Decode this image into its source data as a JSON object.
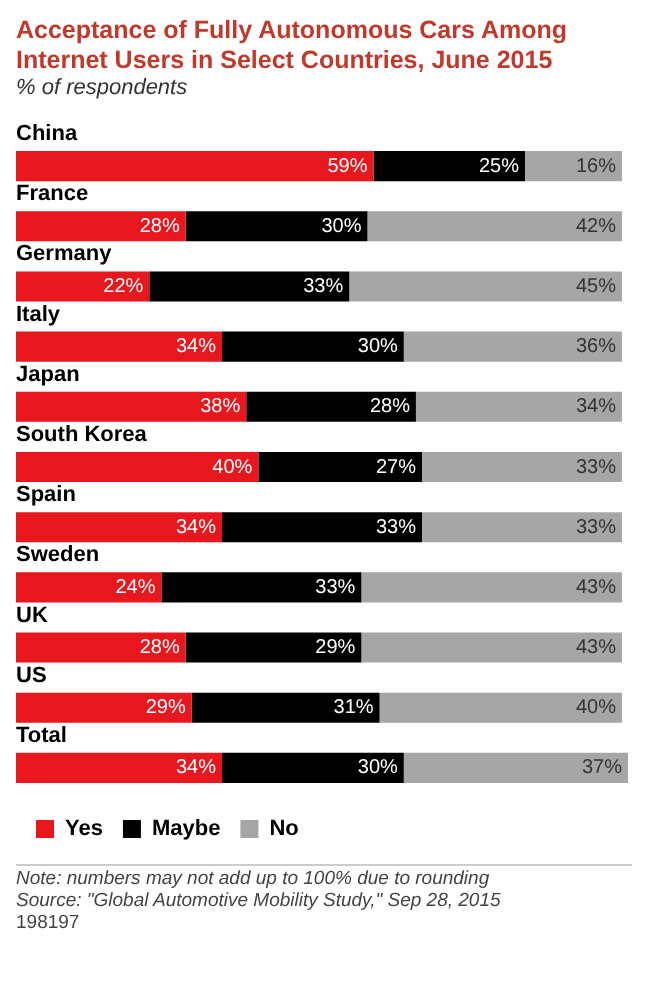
{
  "chart_data": {
    "type": "bar",
    "orientation": "horizontal",
    "stacked": true,
    "title": "Acceptance of Fully Autonomous Cars Among Internet Users in Select Countries, June 2015",
    "subtitle": "% of respondents",
    "categories": [
      "China",
      "France",
      "Germany",
      "Italy",
      "Japan",
      "South Korea",
      "Spain",
      "Sweden",
      "UK",
      "US",
      "Total"
    ],
    "series": [
      {
        "name": "Yes",
        "color": "#e8161d",
        "values": [
          59,
          28,
          22,
          34,
          38,
          40,
          34,
          24,
          28,
          29,
          34
        ],
        "value_labels": [
          "59%",
          "28%",
          "22%",
          "34%",
          "38%",
          "40%",
          "34%",
          "24%",
          "28%",
          "29%",
          "34%"
        ]
      },
      {
        "name": "Maybe",
        "color": "#000000",
        "values": [
          25,
          30,
          33,
          30,
          28,
          27,
          33,
          33,
          29,
          31,
          30
        ],
        "value_labels": [
          "25%",
          "30%",
          "33%",
          "30%",
          "28%",
          "27%",
          "33%",
          "33%",
          "29%",
          "31%",
          "30%"
        ]
      },
      {
        "name": "No",
        "color": "#a6a6a6",
        "values": [
          16,
          42,
          45,
          36,
          34,
          33,
          33,
          43,
          43,
          40,
          37
        ],
        "value_labels": [
          "16%",
          "42%",
          "45%",
          "36%",
          "34%",
          "33%",
          "33%",
          "43%",
          "43%",
          "40%",
          "37%"
        ]
      }
    ],
    "tick_labels": false,
    "legend": "bottom left",
    "annotations": [
      "Note: numbers may not add up to 100% due to rounding",
      "Source: \"Global Automotive Mobility Study,\" Sep 28, 2015",
      "198197"
    ]
  }
}
